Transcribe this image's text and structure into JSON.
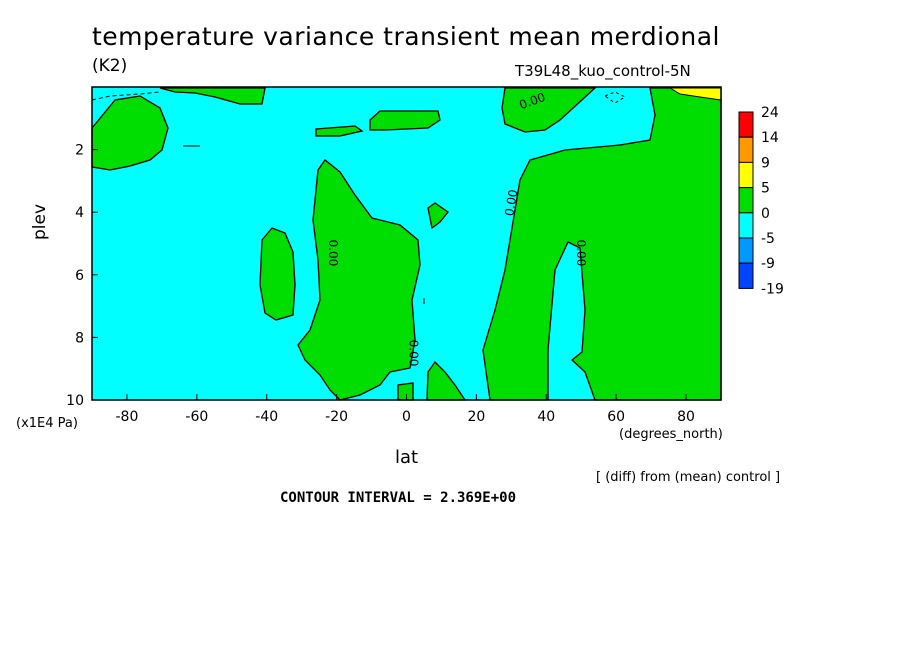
{
  "header": {
    "title": "temperature variance transient mean merdional",
    "units": "(K2)",
    "dataset": "T39L48_kuo_control-5N"
  },
  "footer": {
    "note": "[ (diff) from (mean) control ]",
    "contour_interval": "CONTOUR INTERVAL = 2.369E+00"
  },
  "chart_data": {
    "type": "contour",
    "xlabel": "lat",
    "xunit": "(degrees_north)",
    "ylabel": "plev",
    "yunit": "(x1E4 Pa)",
    "xlim": [
      -90,
      90
    ],
    "ylim": [
      10,
      0
    ],
    "x_ticks": [
      "-80",
      "-60",
      "-40",
      "-20",
      "0",
      "20",
      "40",
      "60",
      "80"
    ],
    "x_tick_values": [
      -80,
      -60,
      -40,
      -20,
      0,
      20,
      40,
      60,
      80
    ],
    "y_ticks": [
      "2",
      "4",
      "6",
      "8",
      "10"
    ],
    "y_tick_values": [
      2,
      4,
      6,
      8,
      10
    ],
    "contour_labels": [
      "0.00",
      "0.00",
      "0.00",
      "0.00",
      "0.00"
    ],
    "colorbar": {
      "labels": [
        "24",
        "14",
        "9",
        "5",
        "0",
        "-5",
        "-9",
        "-19"
      ],
      "colors": [
        "#ff0000",
        "#ff9900",
        "#ffff00",
        "#00dd00",
        "#00ffff",
        "#0099ff",
        "#0044ff"
      ]
    },
    "colors": {
      "negative_fill": "#00ffff",
      "positive_fill": "#00dd00"
    }
  }
}
